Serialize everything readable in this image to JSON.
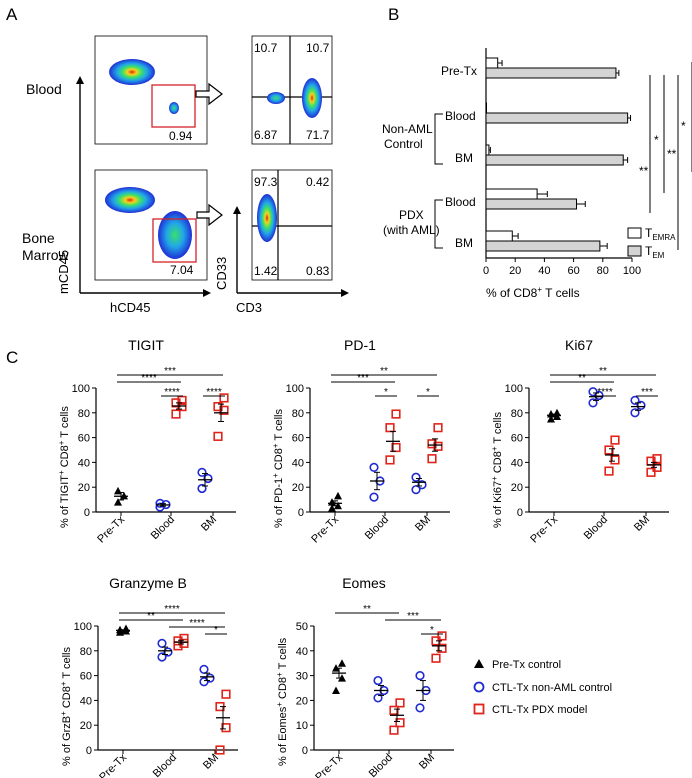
{
  "panel_labels": {
    "a": "A",
    "b": "B",
    "c": "C"
  },
  "panel_a": {
    "row_labels": {
      "blood": "Blood",
      "bm_line1": "Bone",
      "bm_line2": "Marrow"
    },
    "axis_labels": {
      "y_left": "mCD45",
      "x_left": "hCD45",
      "y_right": "CD33",
      "x_right": "CD3"
    },
    "blood_gate_value": "0.94",
    "bm_gate_value": "7.04",
    "blood_quadrants": {
      "ul": "10.7",
      "ur": "10.7",
      "ll": "6.87",
      "lr": "71.7"
    },
    "bm_quadrants": {
      "ul": "97.3",
      "ur": "0.42",
      "ll": "1.42",
      "lr": "0.83"
    }
  },
  "panel_b": {
    "group_labels": {
      "pretx": "Pre-Tx",
      "nonaml_line1": "Non-AML",
      "nonaml_line2": "Control",
      "pdx_line1": "PDX",
      "pdx_line2": "(with AML)",
      "blood": "Blood",
      "bm": "BM"
    },
    "xlabel_main": "% of CD8",
    "xlabel_sup": "+",
    "xlabel_rest": " T cells",
    "legend": {
      "t_prefix": "T",
      "emra_sub": "EMRA",
      "em_sub": "EM"
    },
    "significance": {
      "s1": "**",
      "s2": "*",
      "s3": "**",
      "s4": "*"
    }
  },
  "panel_c_legend": {
    "pretx": "Pre-Tx control",
    "nonaml": "CTL-Tx non-AML control",
    "pdx": "CTL-Tx PDX model"
  },
  "chart_data": [
    {
      "id": "b",
      "type": "bar",
      "orientation": "horizontal",
      "categories": [
        "Pre-Tx",
        "Non-AML Blood",
        "Non-AML BM",
        "PDX Blood",
        "PDX BM"
      ],
      "series": [
        {
          "name": "TEMRA",
          "values": [
            8,
            0,
            2,
            35,
            18
          ],
          "errors": [
            3,
            0,
            1,
            7,
            4
          ]
        },
        {
          "name": "TEM",
          "values": [
            89,
            97,
            94,
            62,
            78
          ],
          "errors": [
            2,
            2,
            3,
            6,
            5
          ]
        }
      ],
      "xlabel": "% of CD8+ T cells",
      "xlim": [
        0,
        100
      ],
      "xticks": [
        "0",
        "20",
        "40",
        "60",
        "80",
        "100"
      ]
    },
    {
      "id": "tigit",
      "type": "scatter",
      "title": "TIGIT",
      "ylabel_pre": "% of TIGIT",
      "ylabel_sup": "+",
      "ylabel_post": " CD8",
      "ylabel_sup2": "+",
      "ylabel_end": " T cells",
      "ylim": [
        0,
        100
      ],
      "yticks": [
        "0",
        "20",
        "40",
        "60",
        "80",
        "100"
      ],
      "categories": [
        "Pre-Tx",
        "Blood",
        "BM"
      ],
      "series": [
        {
          "name": "Pre-Tx control",
          "cat": 0,
          "points": [
            8,
            13,
            17
          ],
          "mean": 12.7,
          "sem": 3
        },
        {
          "name": "CTL-Tx non-AML control",
          "cat": 1,
          "points": [
            4,
            6,
            7
          ],
          "mean": 5.7,
          "sem": 1
        },
        {
          "name": "CTL-Tx PDX model",
          "cat": 1,
          "points": [
            79,
            85,
            88,
            90
          ],
          "mean": 85.5,
          "sem": 2.5
        },
        {
          "name": "CTL-Tx non-AML control",
          "cat": 2,
          "points": [
            19,
            27,
            32
          ],
          "mean": 26,
          "sem": 5
        },
        {
          "name": "CTL-Tx PDX model",
          "cat": 2,
          "points": [
            61,
            82,
            85,
            92
          ],
          "mean": 80,
          "sem": 7
        }
      ],
      "significance": [
        {
          "label": "***",
          "from": 0,
          "to": 2
        },
        {
          "label": "****",
          "from": 0,
          "to": 1
        },
        {
          "label": "****",
          "from": 1,
          "to": 1
        },
        {
          "label": "****",
          "from": 2,
          "to": 2
        }
      ]
    },
    {
      "id": "pd1",
      "type": "scatter",
      "title": "PD-1",
      "ylabel_pre": "% of PD-1",
      "ylabel_sup": "+",
      "ylabel_post": " CD8",
      "ylabel_sup2": "+",
      "ylabel_end": " T cells",
      "ylim": [
        0,
        100
      ],
      "yticks": [
        "0",
        "20",
        "40",
        "60",
        "80",
        "100"
      ],
      "categories": [
        "Pre-Tx",
        "Blood",
        "BM"
      ],
      "series": [
        {
          "name": "Pre-Tx control",
          "cat": 0,
          "points": [
            3,
            5,
            8,
            13
          ],
          "mean": 7,
          "sem": 2
        },
        {
          "name": "CTL-Tx non-AML control",
          "cat": 1,
          "points": [
            12,
            25,
            36
          ],
          "mean": 25,
          "sem": 7
        },
        {
          "name": "CTL-Tx PDX model",
          "cat": 1,
          "points": [
            42,
            52,
            68,
            79
          ],
          "mean": 57,
          "sem": 8
        },
        {
          "name": "CTL-Tx non-AML control",
          "cat": 2,
          "points": [
            18,
            22,
            28
          ],
          "mean": 24,
          "sem": 3
        },
        {
          "name": "CTL-Tx PDX model",
          "cat": 2,
          "points": [
            43,
            53,
            55,
            68
          ],
          "mean": 54,
          "sem": 5
        }
      ],
      "significance": [
        {
          "label": "**",
          "from": 0,
          "to": 2
        },
        {
          "label": "***",
          "from": 0,
          "to": 1
        },
        {
          "label": "*",
          "from": 1,
          "to": 1
        },
        {
          "label": "*",
          "from": 2,
          "to": 2
        }
      ]
    },
    {
      "id": "ki67",
      "type": "scatter",
      "title": "Ki67",
      "ylabel_pre": "% of Ki67",
      "ylabel_sup": "+",
      "ylabel_post": " CD8",
      "ylabel_sup2": "+",
      "ylabel_end": " T cells",
      "ylim": [
        0,
        100
      ],
      "yticks": [
        "0",
        "20",
        "40",
        "60",
        "80",
        "100"
      ],
      "categories": [
        "Pre-Tx",
        "Blood",
        "BM"
      ],
      "series": [
        {
          "name": "Pre-Tx control",
          "cat": 0,
          "points": [
            75,
            77,
            79,
            80
          ],
          "mean": 78,
          "sem": 1
        },
        {
          "name": "CTL-Tx non-AML control",
          "cat": 1,
          "points": [
            88,
            94,
            97
          ],
          "mean": 93,
          "sem": 3
        },
        {
          "name": "CTL-Tx PDX model",
          "cat": 1,
          "points": [
            33,
            42,
            50,
            58
          ],
          "mean": 46,
          "sem": 5
        },
        {
          "name": "CTL-Tx non-AML control",
          "cat": 2,
          "points": [
            80,
            86,
            90
          ],
          "mean": 85,
          "sem": 3
        },
        {
          "name": "CTL-Tx PDX model",
          "cat": 2,
          "points": [
            32,
            36,
            41,
            43
          ],
          "mean": 38,
          "sem": 2
        }
      ],
      "significance": [
        {
          "label": "**",
          "from": 0,
          "to": 2
        },
        {
          "label": "**",
          "from": 0,
          "to": 1
        },
        {
          "label": "****",
          "from": 1,
          "to": 1
        },
        {
          "label": "***",
          "from": 2,
          "to": 2
        }
      ]
    },
    {
      "id": "grzb",
      "type": "scatter",
      "title": "Granzyme B",
      "ylabel_pre": "% of GrzB",
      "ylabel_sup": "+",
      "ylabel_post": " CD8",
      "ylabel_sup2": "+",
      "ylabel_end": " T cells",
      "ylim": [
        0,
        100
      ],
      "yticks": [
        "0",
        "20",
        "40",
        "60",
        "80",
        "100"
      ],
      "categories": [
        "Pre-Tx",
        "Blood",
        "BM"
      ],
      "series": [
        {
          "name": "Pre-Tx control",
          "cat": 0,
          "points": [
            95,
            96,
            97,
            98
          ],
          "mean": 96.5,
          "sem": 0.5
        },
        {
          "name": "CTL-Tx non-AML control",
          "cat": 1,
          "points": [
            75,
            79,
            86
          ],
          "mean": 80,
          "sem": 3
        },
        {
          "name": "CTL-Tx PDX model",
          "cat": 1,
          "points": [
            84,
            86,
            88,
            90
          ],
          "mean": 87,
          "sem": 1.5
        },
        {
          "name": "CTL-Tx non-AML control",
          "cat": 2,
          "points": [
            55,
            58,
            65
          ],
          "mean": 59,
          "sem": 3
        },
        {
          "name": "CTL-Tx PDX model",
          "cat": 2,
          "points": [
            0,
            18,
            35,
            45
          ],
          "mean": 26,
          "sem": 9
        }
      ],
      "significance": [
        {
          "label": "****",
          "from": 0,
          "to": 2
        },
        {
          "label": "**",
          "from": 0,
          "to": 1
        },
        {
          "label": "****",
          "from": 1,
          "to": 2
        },
        {
          "label": "*",
          "from": 2,
          "to": 2
        }
      ]
    },
    {
      "id": "eomes",
      "type": "scatter",
      "title": "Eomes",
      "ylabel_pre": "% of Eomes",
      "ylabel_sup": "+",
      "ylabel_post": " CD8",
      "ylabel_sup2": "+",
      "ylabel_end": " T cells",
      "ylim": [
        0,
        50
      ],
      "yticks": [
        "0",
        "10",
        "20",
        "30",
        "40",
        "50"
      ],
      "categories": [
        "Pre-Tx",
        "Blood",
        "BM"
      ],
      "series": [
        {
          "name": "Pre-Tx control",
          "cat": 0,
          "points": [
            24,
            29,
            33,
            35
          ],
          "mean": 31,
          "sem": 2
        },
        {
          "name": "CTL-Tx non-AML control",
          "cat": 1,
          "points": [
            21,
            24,
            28
          ],
          "mean": 24,
          "sem": 2
        },
        {
          "name": "CTL-Tx PDX model",
          "cat": 1,
          "points": [
            8,
            11,
            16,
            19
          ],
          "mean": 14,
          "sem": 2.5
        },
        {
          "name": "CTL-Tx non-AML control",
          "cat": 2,
          "points": [
            17,
            24,
            30
          ],
          "mean": 24,
          "sem": 4
        },
        {
          "name": "CTL-Tx PDX model",
          "cat": 2,
          "points": [
            37,
            41,
            44,
            46
          ],
          "mean": 42,
          "sem": 2
        }
      ],
      "significance": [
        {
          "label": "**",
          "from": 0,
          "to": 1
        },
        {
          "label": "***",
          "from": 1,
          "to": 2
        },
        {
          "label": "*",
          "from": 2,
          "to": 2
        }
      ]
    }
  ]
}
